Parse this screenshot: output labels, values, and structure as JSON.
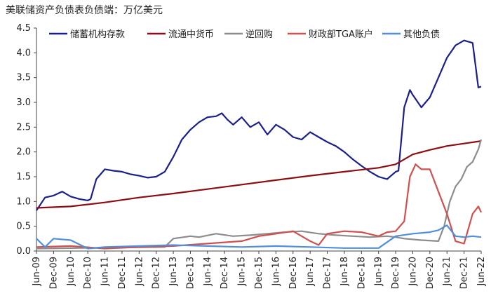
{
  "chart_data": {
    "type": "line",
    "title": "美联储资产负债表负债端：万亿美元",
    "xlabel": "",
    "ylabel": "",
    "ylim": [
      0,
      4.5
    ],
    "yticks": [
      "0.0",
      "0.5",
      "1.0",
      "1.5",
      "2.0",
      "2.5",
      "3.0",
      "3.5",
      "4.0",
      "4.5"
    ],
    "xlim": [
      "2009-06",
      "2022-06"
    ],
    "xticks": [
      "Jun-09",
      "Dec-09",
      "Jun-10",
      "Dec-10",
      "Jun-11",
      "Dec-11",
      "Jun-12",
      "Dec-12",
      "Jun-13",
      "Dec-13",
      "Jun-14",
      "Dec-14",
      "Jun-15",
      "Dec-15",
      "Jun-16",
      "Dec-16",
      "Jun-17",
      "Dec-17",
      "Jun-18",
      "Dec-18",
      "Jun-19",
      "Dec-19",
      "Jun-20",
      "Dec-20",
      "Jun-21",
      "Dec-21",
      "Jun-22"
    ],
    "grid": false,
    "legend_position": "top",
    "series": [
      {
        "name": "储蓄机构存款",
        "color": "#1a1f8c",
        "x": [
          "2009-06",
          "2009-09",
          "2009-12",
          "2010-03",
          "2010-06",
          "2010-09",
          "2010-12",
          "2011-01",
          "2011-03",
          "2011-06",
          "2011-09",
          "2011-12",
          "2012-03",
          "2012-06",
          "2012-09",
          "2012-12",
          "2013-03",
          "2013-06",
          "2013-09",
          "2013-12",
          "2014-03",
          "2014-06",
          "2014-09",
          "2014-11",
          "2015-01",
          "2015-03",
          "2015-06",
          "2015-09",
          "2015-12",
          "2016-03",
          "2016-06",
          "2016-09",
          "2016-12",
          "2017-03",
          "2017-06",
          "2017-09",
          "2017-12",
          "2018-03",
          "2018-06",
          "2018-09",
          "2018-12",
          "2019-03",
          "2019-06",
          "2019-09",
          "2019-12",
          "2020-01",
          "2020-03",
          "2020-05",
          "2020-06",
          "2020-09",
          "2020-12",
          "2021-03",
          "2021-06",
          "2021-09",
          "2021-12",
          "2022-03",
          "2022-04",
          "2022-05",
          "2022-06"
        ],
        "values": [
          0.82,
          1.08,
          1.12,
          1.2,
          1.1,
          1.05,
          1.02,
          1.05,
          1.45,
          1.65,
          1.62,
          1.6,
          1.55,
          1.52,
          1.48,
          1.5,
          1.6,
          1.9,
          2.25,
          2.45,
          2.6,
          2.7,
          2.72,
          2.78,
          2.65,
          2.55,
          2.7,
          2.5,
          2.6,
          2.35,
          2.55,
          2.45,
          2.3,
          2.25,
          2.4,
          2.3,
          2.2,
          2.12,
          2.0,
          1.85,
          1.72,
          1.6,
          1.5,
          1.45,
          1.6,
          1.62,
          2.9,
          3.25,
          3.15,
          2.9,
          3.1,
          3.5,
          3.9,
          4.15,
          4.25,
          4.2,
          3.75,
          3.3,
          3.32
        ]
      },
      {
        "name": "流通中货币",
        "color": "#8b0e14",
        "x": [
          "2009-06",
          "2010-06",
          "2011-06",
          "2012-06",
          "2013-06",
          "2014-06",
          "2015-06",
          "2016-06",
          "2017-06",
          "2018-06",
          "2019-06",
          "2019-12",
          "2020-06",
          "2020-12",
          "2021-06",
          "2021-12",
          "2022-06"
        ],
        "values": [
          0.87,
          0.9,
          0.98,
          1.08,
          1.16,
          1.25,
          1.34,
          1.43,
          1.52,
          1.6,
          1.68,
          1.75,
          1.95,
          2.04,
          2.12,
          2.17,
          2.22
        ]
      },
      {
        "name": "逆回购",
        "color": "#8c8c8c",
        "x": [
          "2009-06",
          "2013-03",
          "2013-06",
          "2013-12",
          "2014-03",
          "2014-09",
          "2015-03",
          "2015-09",
          "2016-03",
          "2016-09",
          "2017-03",
          "2017-09",
          "2018-03",
          "2018-09",
          "2019-03",
          "2019-09",
          "2019-12",
          "2020-03",
          "2020-09",
          "2021-03",
          "2021-05",
          "2021-07",
          "2021-09",
          "2021-11",
          "2022-01",
          "2022-03",
          "2022-05",
          "2022-06"
        ],
        "values": [
          0.05,
          0.08,
          0.25,
          0.3,
          0.28,
          0.35,
          0.3,
          0.32,
          0.35,
          0.38,
          0.4,
          0.35,
          0.32,
          0.3,
          0.28,
          0.3,
          0.28,
          0.25,
          0.22,
          0.2,
          0.5,
          1.0,
          1.3,
          1.45,
          1.7,
          1.8,
          2.05,
          2.25
        ]
      },
      {
        "name": "财政部TGA账户",
        "color": "#d05050",
        "x": [
          "2009-06",
          "2010-06",
          "2011-06",
          "2012-06",
          "2013-06",
          "2014-06",
          "2015-06",
          "2015-12",
          "2016-06",
          "2016-12",
          "2017-06",
          "2017-09",
          "2017-12",
          "2018-06",
          "2018-12",
          "2019-06",
          "2019-09",
          "2019-12",
          "2020-03",
          "2020-05",
          "2020-07",
          "2020-09",
          "2020-12",
          "2021-03",
          "2021-06",
          "2021-09",
          "2021-12",
          "2022-03",
          "2022-05",
          "2022-06"
        ],
        "values": [
          0.08,
          0.1,
          0.05,
          0.08,
          0.1,
          0.15,
          0.2,
          0.3,
          0.35,
          0.4,
          0.2,
          0.12,
          0.35,
          0.4,
          0.38,
          0.3,
          0.38,
          0.4,
          0.6,
          1.5,
          1.75,
          1.65,
          1.65,
          1.2,
          0.75,
          0.2,
          0.15,
          0.75,
          0.9,
          0.78
        ]
      },
      {
        "name": "其他负债",
        "color": "#4f8fdc",
        "x": [
          "2009-06",
          "2009-09",
          "2009-12",
          "2010-06",
          "2010-12",
          "2011-06",
          "2012-06",
          "2013-06",
          "2014-06",
          "2015-06",
          "2016-06",
          "2017-06",
          "2018-06",
          "2019-06",
          "2019-12",
          "2020-06",
          "2020-12",
          "2021-03",
          "2021-06",
          "2021-09",
          "2021-12",
          "2022-03",
          "2022-06"
        ],
        "values": [
          0.25,
          0.08,
          0.25,
          0.22,
          0.05,
          0.08,
          0.1,
          0.12,
          0.1,
          0.08,
          0.1,
          0.08,
          0.06,
          0.06,
          0.3,
          0.35,
          0.38,
          0.42,
          0.52,
          0.3,
          0.28,
          0.3,
          0.28
        ]
      }
    ]
  }
}
